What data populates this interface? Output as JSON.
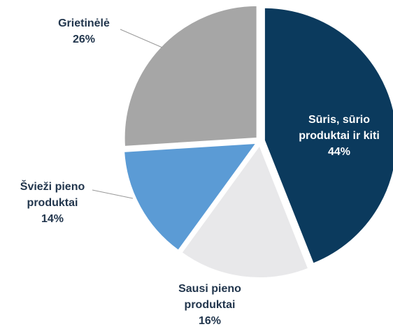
{
  "chart_data": {
    "type": "pie",
    "categories": [
      "Sūris, sūrio produktai ir kiti",
      "Sausi pieno produktai",
      "Švieži pieno produktai",
      "Grietinėlė"
    ],
    "values": [
      44,
      16,
      14,
      26
    ],
    "value_labels": [
      "44%",
      "16%",
      "14%",
      "26%"
    ],
    "colors": [
      "#0b3a5d",
      "#e8e8ea",
      "#5b9bd5",
      "#a6a6a6"
    ]
  }
}
